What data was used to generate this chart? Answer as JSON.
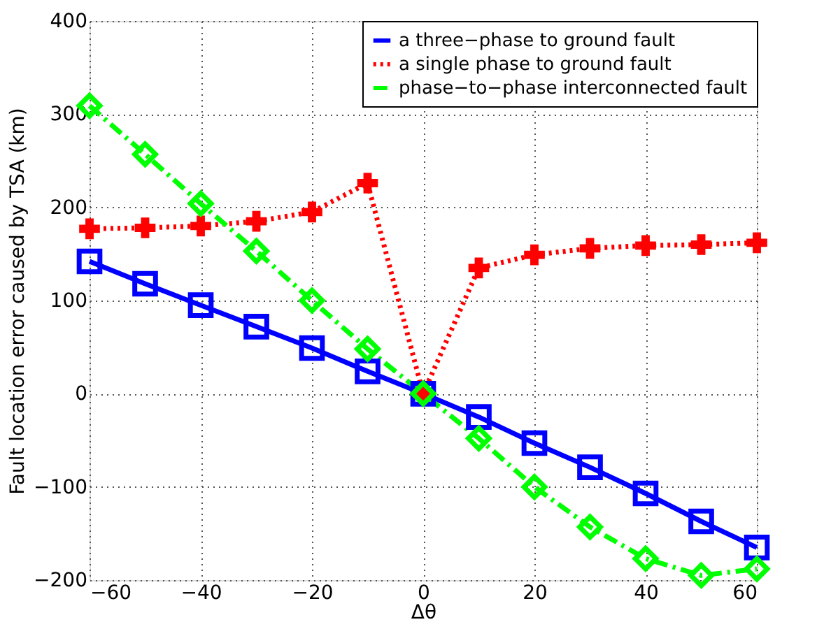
{
  "chart_data": {
    "type": "line",
    "xlabel": "Δθ",
    "ylabel": "Fault location error caused by TSA (km)",
    "x": [
      -60,
      -50,
      -40,
      -30,
      -20,
      -10,
      0,
      10,
      20,
      30,
      40,
      50,
      60
    ],
    "series": [
      {
        "name": "a three−phase to ground fault",
        "color": "#0000ff",
        "marker": "square",
        "line_style": "solid",
        "values": [
          142,
          118,
          95,
          72,
          49,
          24,
          0,
          -25,
          -53,
          -79,
          -107,
          -137,
          -165
        ]
      },
      {
        "name": "a single phase to ground fault",
        "color": "#ff0000",
        "marker": "cross",
        "line_style": "dotted",
        "values": [
          177,
          178,
          180,
          185,
          195,
          226,
          0,
          135,
          149,
          156,
          159,
          160,
          162
        ]
      },
      {
        "name": "phase−to−phase interconnected fault",
        "color": "#00ff00",
        "marker": "diamond",
        "line_style": "dashed",
        "values": [
          309,
          257,
          204,
          153,
          100,
          48,
          0,
          -48,
          -100,
          -143,
          -177,
          -195,
          -188
        ]
      }
    ],
    "xlim": [
      -60,
      60
    ],
    "xticks": [
      -60,
      -40,
      -20,
      0,
      20,
      40,
      60
    ],
    "ylim": [
      -200,
      400
    ],
    "yticks": [
      -200,
      -100,
      0,
      100,
      200,
      300,
      400
    ],
    "grid": true,
    "legend": "top right"
  }
}
